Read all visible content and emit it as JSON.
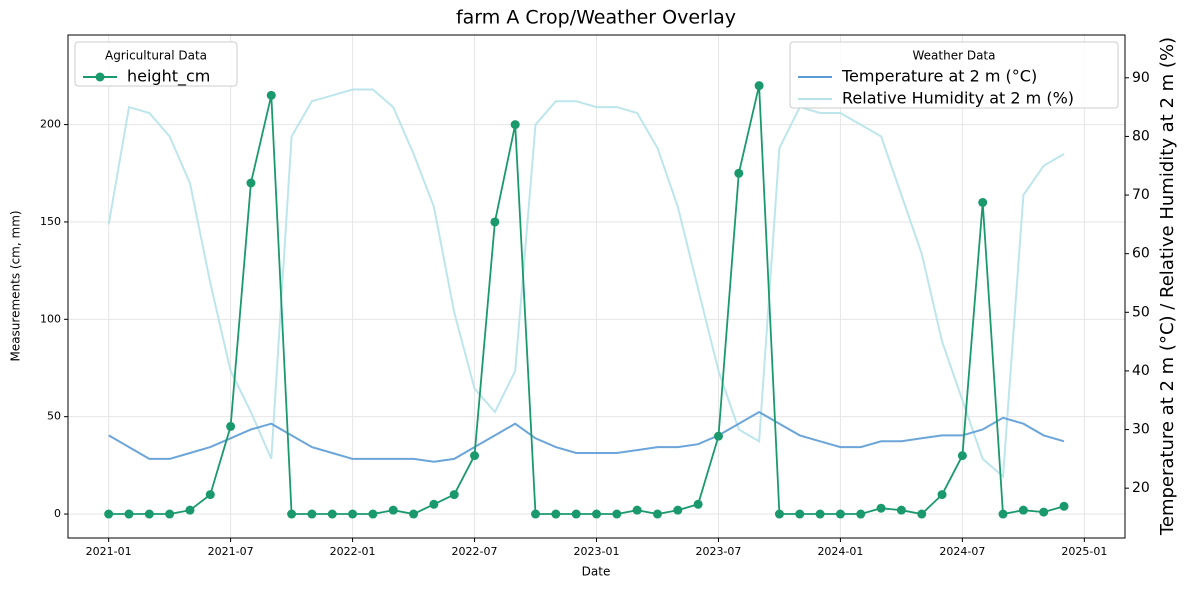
{
  "chart_data": {
    "type": "line",
    "title": "farm A Crop/Weather Overlay",
    "xlabel": "Date",
    "ylabel": "Measurements (cm, mm)",
    "y2label": "Temperature at 2 m (°C) / Relative Humidity at 2 m (%)",
    "legend_titles": [
      "Agricultural Data",
      "Weather Data"
    ],
    "x": [
      "2021-01",
      "2021-02",
      "2021-03",
      "2021-04",
      "2021-05",
      "2021-06",
      "2021-07",
      "2021-08",
      "2021-09",
      "2021-10",
      "2021-11",
      "2021-12",
      "2022-01",
      "2022-02",
      "2022-03",
      "2022-04",
      "2022-05",
      "2022-06",
      "2022-07",
      "2022-08",
      "2022-09",
      "2022-10",
      "2022-11",
      "2022-12",
      "2023-01",
      "2023-02",
      "2023-03",
      "2023-04",
      "2023-05",
      "2023-06",
      "2023-07",
      "2023-08",
      "2023-09",
      "2023-10",
      "2023-11",
      "2023-12",
      "2024-01",
      "2024-02",
      "2024-03",
      "2024-04",
      "2024-05",
      "2024-06",
      "2024-07",
      "2024-08",
      "2024-09",
      "2024-10",
      "2024-11",
      "2024-12"
    ],
    "series": [
      {
        "name": "height_cm",
        "color": "#1a9a6c",
        "axis": "y",
        "values": [
          0,
          0,
          0,
          0,
          2,
          10,
          45,
          170,
          215,
          0,
          0,
          0,
          0,
          0,
          2,
          0,
          5,
          10,
          30,
          150,
          200,
          0,
          0,
          0,
          0,
          0,
          2,
          0,
          2,
          5,
          40,
          175,
          220,
          0,
          0,
          0,
          0,
          0,
          3,
          2,
          0,
          10,
          30,
          160,
          0,
          2,
          1,
          4
        ]
      },
      {
        "name": "Temperature at 2 m (°C)",
        "color": "#5b9bd5",
        "axis": "y2",
        "values": [
          29,
          27,
          25,
          25,
          26,
          27,
          28.5,
          30,
          31,
          29,
          27,
          26,
          25,
          25,
          25,
          25,
          24.5,
          25,
          27,
          29,
          31,
          28.5,
          27,
          26,
          26,
          26,
          26.5,
          27,
          27,
          27.5,
          29,
          31,
          33,
          31,
          29,
          28,
          27,
          27,
          28,
          28,
          28.5,
          29,
          29,
          30,
          32,
          31,
          29,
          28
        ]
      },
      {
        "name": "Relative Humidity at 2 m (%)",
        "color": "#b6e3ea",
        "axis": "y2",
        "values": [
          65,
          85,
          84,
          80,
          72,
          55,
          40,
          33,
          25,
          80,
          86,
          87,
          88,
          88,
          85,
          77,
          68,
          50,
          37,
          33,
          40,
          82,
          86,
          86,
          85,
          85,
          84,
          78,
          68,
          54,
          40,
          30,
          28,
          78,
          85,
          84,
          84,
          82,
          80,
          70,
          60,
          45,
          35,
          25,
          22,
          70,
          75,
          77
        ]
      }
    ],
    "xlim": [
      "2020-11",
      "2025-03"
    ],
    "xticks": [
      "2021-01",
      "2021-07",
      "2022-01",
      "2022-07",
      "2023-01",
      "2023-07",
      "2024-01",
      "2024-07",
      "2025-01"
    ],
    "ylim": [
      -12.3,
      246
    ],
    "yticks": [
      0,
      50,
      100,
      150,
      200
    ],
    "y2lim": [
      11.5,
      97.3
    ],
    "y2ticks": [
      20,
      30,
      40,
      50,
      60,
      70,
      80,
      90
    ],
    "grid": true
  }
}
